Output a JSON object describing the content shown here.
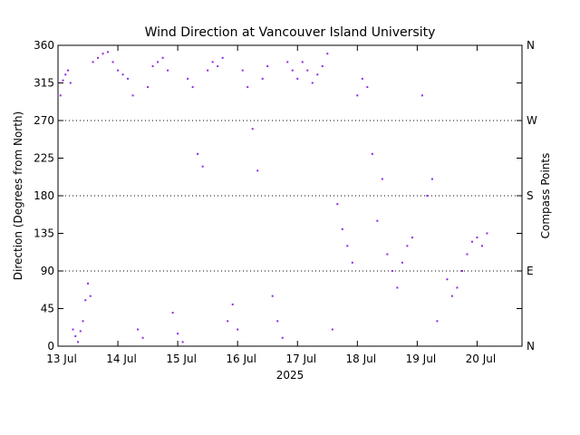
{
  "chart_data": {
    "type": "scatter",
    "title": "Wind Direction at Vancouver Island University",
    "ylabel": "Direction (Degrees from North)",
    "y2label": "Compass Points",
    "xlabel": "2025",
    "ylim": [
      0,
      360
    ],
    "xlim": [
      "2025-07-13 00:00",
      "2025-07-20 18:00"
    ],
    "y_ticks": [
      0,
      45,
      90,
      135,
      180,
      225,
      270,
      315,
      360
    ],
    "x_ticks": [
      {
        "date": "2025-07-13",
        "label": "13 Jul"
      },
      {
        "date": "2025-07-14",
        "label": "14 Jul"
      },
      {
        "date": "2025-07-15",
        "label": "15 Jul"
      },
      {
        "date": "2025-07-16",
        "label": "16 Jul"
      },
      {
        "date": "2025-07-17",
        "label": "17 Jul"
      },
      {
        "date": "2025-07-18",
        "label": "18 Jul"
      },
      {
        "date": "2025-07-19",
        "label": "19 Jul"
      },
      {
        "date": "2025-07-20",
        "label": "20 Jul"
      }
    ],
    "compass_points": [
      {
        "label": "N",
        "deg": 0
      },
      {
        "label": "E",
        "deg": 90
      },
      {
        "label": "S",
        "deg": 180
      },
      {
        "label": "W",
        "deg": 270
      },
      {
        "label": "N",
        "deg": 360
      }
    ],
    "reference_lines_deg": [
      90,
      180,
      270
    ],
    "marker_color": "#8a2be2",
    "series": [
      {
        "values": [
          [
            "2025-07-13 01:00",
            300
          ],
          [
            "2025-07-13 02:00",
            318
          ],
          [
            "2025-07-13 03:00",
            325
          ],
          [
            "2025-07-13 04:00",
            330
          ],
          [
            "2025-07-13 05:00",
            315
          ],
          [
            "2025-07-13 06:00",
            20
          ],
          [
            "2025-07-13 07:00",
            12
          ],
          [
            "2025-07-13 08:00",
            5
          ],
          [
            "2025-07-13 09:00",
            18
          ],
          [
            "2025-07-13 10:00",
            30
          ],
          [
            "2025-07-13 11:00",
            55
          ],
          [
            "2025-07-13 12:00",
            75
          ],
          [
            "2025-07-13 13:00",
            60
          ],
          [
            "2025-07-13 14:00",
            340
          ],
          [
            "2025-07-13 16:00",
            345
          ],
          [
            "2025-07-13 18:00",
            350
          ],
          [
            "2025-07-13 20:00",
            352
          ],
          [
            "2025-07-13 22:00",
            340
          ],
          [
            "2025-07-14 00:00",
            330
          ],
          [
            "2025-07-14 02:00",
            325
          ],
          [
            "2025-07-14 04:00",
            320
          ],
          [
            "2025-07-14 06:00",
            300
          ],
          [
            "2025-07-14 08:00",
            20
          ],
          [
            "2025-07-14 10:00",
            10
          ],
          [
            "2025-07-14 12:00",
            310
          ],
          [
            "2025-07-14 14:00",
            335
          ],
          [
            "2025-07-14 16:00",
            340
          ],
          [
            "2025-07-14 18:00",
            345
          ],
          [
            "2025-07-14 20:00",
            330
          ],
          [
            "2025-07-14 22:00",
            40
          ],
          [
            "2025-07-15 00:00",
            15
          ],
          [
            "2025-07-15 02:00",
            5
          ],
          [
            "2025-07-15 04:00",
            320
          ],
          [
            "2025-07-15 06:00",
            310
          ],
          [
            "2025-07-15 08:00",
            230
          ],
          [
            "2025-07-15 10:00",
            215
          ],
          [
            "2025-07-15 12:00",
            330
          ],
          [
            "2025-07-15 14:00",
            340
          ],
          [
            "2025-07-15 16:00",
            335
          ],
          [
            "2025-07-15 18:00",
            345
          ],
          [
            "2025-07-15 20:00",
            30
          ],
          [
            "2025-07-15 22:00",
            50
          ],
          [
            "2025-07-16 00:00",
            20
          ],
          [
            "2025-07-16 02:00",
            330
          ],
          [
            "2025-07-16 04:00",
            310
          ],
          [
            "2025-07-16 06:00",
            260
          ],
          [
            "2025-07-16 08:00",
            210
          ],
          [
            "2025-07-16 10:00",
            320
          ],
          [
            "2025-07-16 12:00",
            335
          ],
          [
            "2025-07-16 14:00",
            60
          ],
          [
            "2025-07-16 16:00",
            30
          ],
          [
            "2025-07-16 18:00",
            10
          ],
          [
            "2025-07-16 20:00",
            340
          ],
          [
            "2025-07-16 22:00",
            330
          ],
          [
            "2025-07-17 00:00",
            320
          ],
          [
            "2025-07-17 02:00",
            340
          ],
          [
            "2025-07-17 04:00",
            330
          ],
          [
            "2025-07-17 06:00",
            315
          ],
          [
            "2025-07-17 08:00",
            325
          ],
          [
            "2025-07-17 10:00",
            335
          ],
          [
            "2025-07-17 12:00",
            350
          ],
          [
            "2025-07-17 14:00",
            20
          ],
          [
            "2025-07-17 16:00",
            170
          ],
          [
            "2025-07-17 18:00",
            140
          ],
          [
            "2025-07-17 20:00",
            120
          ],
          [
            "2025-07-17 22:00",
            100
          ],
          [
            "2025-07-18 00:00",
            300
          ],
          [
            "2025-07-18 02:00",
            320
          ],
          [
            "2025-07-18 04:00",
            310
          ],
          [
            "2025-07-18 06:00",
            230
          ],
          [
            "2025-07-18 08:00",
            150
          ],
          [
            "2025-07-18 10:00",
            200
          ],
          [
            "2025-07-18 12:00",
            110
          ],
          [
            "2025-07-18 14:00",
            90
          ],
          [
            "2025-07-18 16:00",
            70
          ],
          [
            "2025-07-18 18:00",
            100
          ],
          [
            "2025-07-18 20:00",
            120
          ],
          [
            "2025-07-18 22:00",
            130
          ],
          [
            "2025-07-19 02:00",
            300
          ],
          [
            "2025-07-19 04:00",
            180
          ],
          [
            "2025-07-19 06:00",
            200
          ],
          [
            "2025-07-19 08:00",
            30
          ],
          [
            "2025-07-19 12:00",
            80
          ],
          [
            "2025-07-19 14:00",
            60
          ],
          [
            "2025-07-19 16:00",
            70
          ],
          [
            "2025-07-19 18:00",
            90
          ],
          [
            "2025-07-19 20:00",
            110
          ],
          [
            "2025-07-19 22:00",
            125
          ],
          [
            "2025-07-20 00:00",
            130
          ],
          [
            "2025-07-20 02:00",
            120
          ],
          [
            "2025-07-20 04:00",
            135
          ]
        ]
      }
    ]
  }
}
